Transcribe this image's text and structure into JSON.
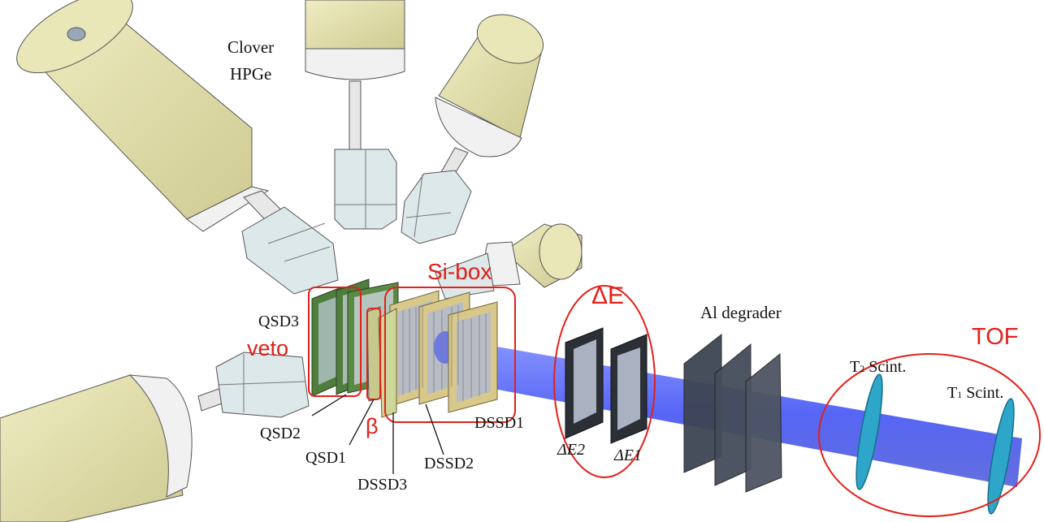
{
  "labels": {
    "clover_line1": "Clover",
    "clover_line2": "HPGe",
    "si_box": "Si-box",
    "delta_e": "ΔE",
    "al_degrader": "Al degrader",
    "tof": "TOF",
    "qsd3": "QSD3",
    "veto": "veto",
    "qsd2": "QSD2",
    "qsd1": "QSD1",
    "beta": "β",
    "dssd3": "DSSD3",
    "dssd2": "DSSD2",
    "dssd1": "DSSD1",
    "de2": "ΔE2",
    "de1": "ΔE1",
    "t2_prefix": "T",
    "t2_sub": "2",
    "t2_suffix": " Scint.",
    "t1_prefix": "T",
    "t1_sub": "1",
    "t1_suffix": " Scint."
  },
  "colors": {
    "annotation_red": "#e32019",
    "beam_blue": "#2a3cf0",
    "hpge_body": "#e4e1ae",
    "hpge_ring": "#f1f1f1",
    "crystal": "#dce8ea",
    "qsd_green": "#4f7d3c",
    "dssd_frame": "#d8c98a",
    "degrader_plate": "#3e4553",
    "scint": "#2ea6c9"
  }
}
